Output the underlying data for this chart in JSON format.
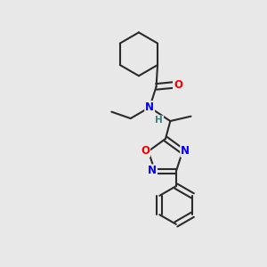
{
  "bg_color": "#e8e8e8",
  "bond_color": "#2a2a2a",
  "bond_width": 1.5,
  "atom_colors": {
    "N": "#0000ee",
    "O": "#ee0000",
    "C": "#2a2a2a",
    "H": "#3a8080"
  },
  "font_size_atom": 8.5,
  "font_size_h": 7.5
}
